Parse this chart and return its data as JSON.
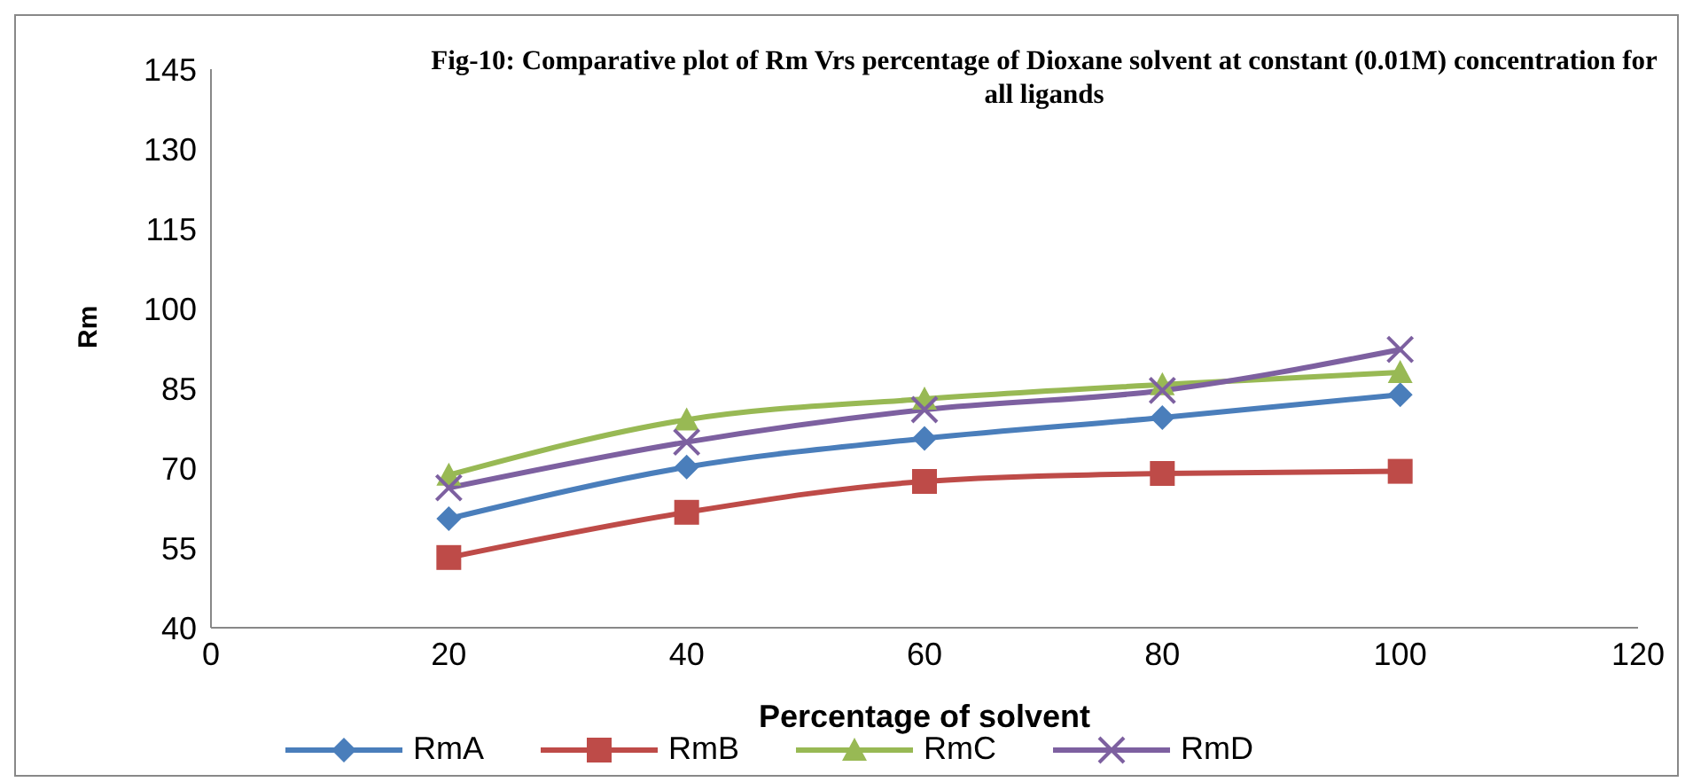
{
  "chart_data": {
    "type": "line",
    "title": "Fig-10: Comparative plot of Rm Vrs percentage of Dioxane solvent at constant (0.01M) concentration for all ligands",
    "xlabel": "Percentage of solvent",
    "ylabel": "Rm",
    "x": [
      20,
      40,
      60,
      80,
      100
    ],
    "series": [
      {
        "name": "RmA",
        "color": "#4a7ebb",
        "marker": "diamond",
        "values": [
          60.5,
          70.2,
          75.6,
          79.5,
          83.8
        ]
      },
      {
        "name": "RmB",
        "color": "#be4b48",
        "marker": "square",
        "values": [
          53.2,
          61.7,
          67.5,
          69,
          69.4
        ]
      },
      {
        "name": "RmC",
        "color": "#98b954",
        "marker": "triangle",
        "values": [
          68.7,
          79.1,
          83,
          85.7,
          88
        ]
      },
      {
        "name": "RmD",
        "color": "#7d60a0",
        "marker": "cross",
        "values": [
          66.3,
          74.9,
          81,
          84.6,
          92.3
        ]
      }
    ],
    "xlim": [
      0,
      120
    ],
    "xticks": [
      0,
      20,
      40,
      60,
      80,
      100,
      120
    ],
    "ylim": [
      40,
      145
    ],
    "yticks": [
      40,
      55,
      70,
      85,
      100,
      115,
      130,
      145
    ],
    "grid": false,
    "legend": "bottom"
  }
}
